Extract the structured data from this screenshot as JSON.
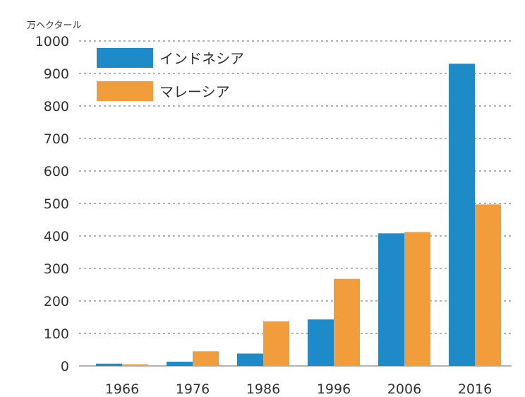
{
  "chart_data": {
    "type": "bar",
    "unit_label": "万ヘクタール",
    "categories": [
      "1966",
      "1976",
      "1986",
      "1996",
      "2006",
      "2016"
    ],
    "series": [
      {
        "name": "インドネシア",
        "color": "#1f8ac8",
        "values": [
          7,
          13,
          38,
          143,
          408,
          930
        ]
      },
      {
        "name": "マレーシア",
        "color": "#f29d3c",
        "values": [
          5,
          45,
          137,
          268,
          412,
          497
        ]
      }
    ],
    "ylim": [
      0,
      1000
    ],
    "yticks": [
      0,
      100,
      200,
      300,
      400,
      500,
      600,
      700,
      800,
      900,
      1000
    ],
    "grid": true,
    "legend_position": "top-left"
  }
}
